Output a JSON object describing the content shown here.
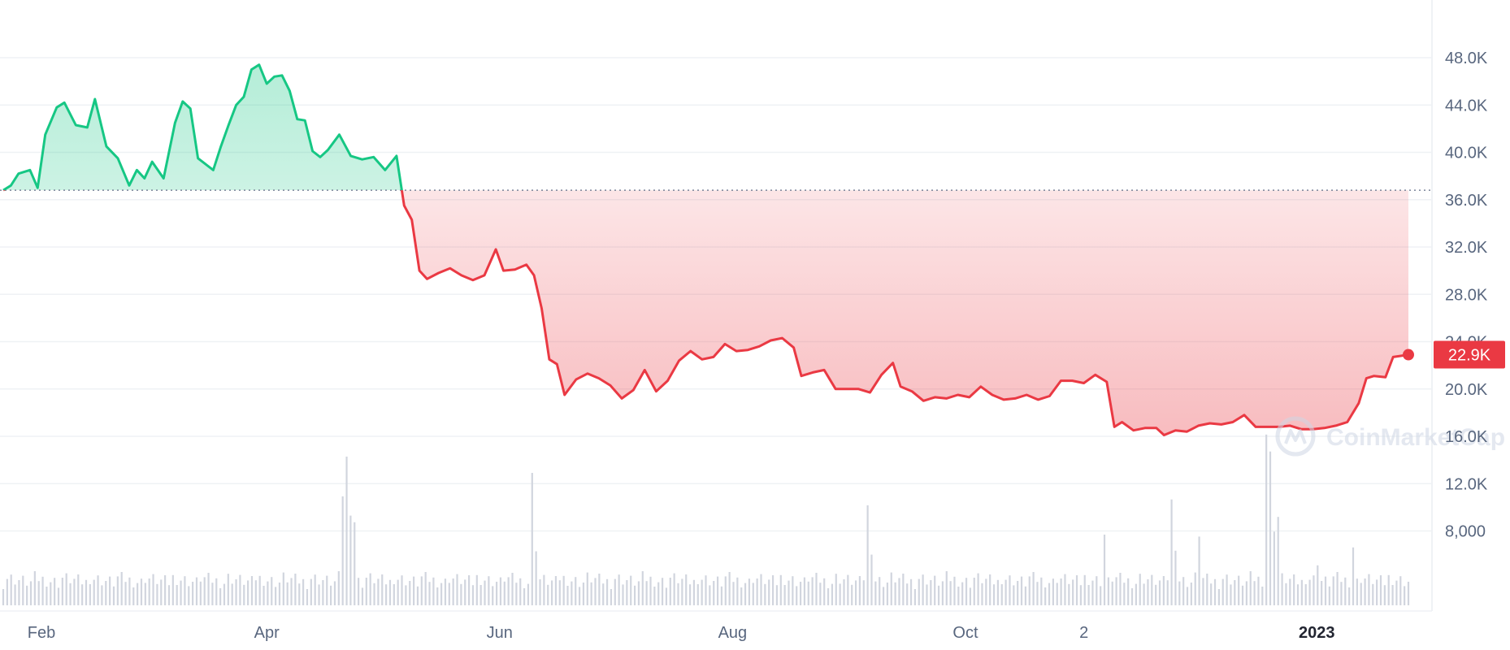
{
  "chart_data": {
    "type": "line",
    "ylim": [
      6000,
      52000
    ],
    "y_ticks": [
      {
        "value": 48000,
        "label": "48.0K"
      },
      {
        "value": 44000,
        "label": "44.0K"
      },
      {
        "value": 40000,
        "label": "40.0K"
      },
      {
        "value": 36000,
        "label": "36.0K"
      },
      {
        "value": 32000,
        "label": "32.0K"
      },
      {
        "value": 28000,
        "label": "28.0K"
      },
      {
        "value": 24000,
        "label": "24.0K"
      },
      {
        "value": 20000,
        "label": "20.0K"
      },
      {
        "value": 16000,
        "label": "16.0K"
      },
      {
        "value": 12000,
        "label": "12.0K"
      },
      {
        "value": 8000,
        "label": "8,000"
      }
    ],
    "x_ticks": [
      {
        "date": "2022-02-01",
        "label": "Feb",
        "bold": false
      },
      {
        "date": "2022-04-01",
        "label": "Apr",
        "bold": false
      },
      {
        "date": "2022-06-01",
        "label": "Jun",
        "bold": false
      },
      {
        "date": "2022-08-01",
        "label": "Aug",
        "bold": false
      },
      {
        "date": "2022-10-01",
        "label": "Oct",
        "bold": false
      },
      {
        "date": "2022-11-01",
        "label": "2",
        "bold": false
      },
      {
        "date": "2023-01-01",
        "label": "2023",
        "bold": true
      }
    ],
    "baseline_value": 36800,
    "current_value": 22900,
    "current_label": "22.9K",
    "colors": {
      "up": "#16c784",
      "down": "#ea3943",
      "grid": "#eff2f5",
      "volume": "#d1d5de"
    },
    "watermark": "CoinMarketCap",
    "series": [
      {
        "values": [
          [
            "2022-01-22",
            36800
          ],
          [
            "2022-01-24",
            37200
          ],
          [
            "2022-01-26",
            38200
          ],
          [
            "2022-01-29",
            38500
          ],
          [
            "2022-01-31",
            37000
          ],
          [
            "2022-02-02",
            41500
          ],
          [
            "2022-02-05",
            43800
          ],
          [
            "2022-02-07",
            44200
          ],
          [
            "2022-02-10",
            42300
          ],
          [
            "2022-02-13",
            42100
          ],
          [
            "2022-02-15",
            44500
          ],
          [
            "2022-02-18",
            40500
          ],
          [
            "2022-02-21",
            39500
          ],
          [
            "2022-02-24",
            37200
          ],
          [
            "2022-02-26",
            38500
          ],
          [
            "2022-02-28",
            37800
          ],
          [
            "2022-03-02",
            39200
          ],
          [
            "2022-03-05",
            37800
          ],
          [
            "2022-03-08",
            42500
          ],
          [
            "2022-03-10",
            44300
          ],
          [
            "2022-03-12",
            43700
          ],
          [
            "2022-03-14",
            39500
          ],
          [
            "2022-03-16",
            39000
          ],
          [
            "2022-03-18",
            38500
          ],
          [
            "2022-03-20",
            40500
          ],
          [
            "2022-03-22",
            42300
          ],
          [
            "2022-03-24",
            44000
          ],
          [
            "2022-03-26",
            44700
          ],
          [
            "2022-03-28",
            47000
          ],
          [
            "2022-03-30",
            47400
          ],
          [
            "2022-04-01",
            45800
          ],
          [
            "2022-04-03",
            46400
          ],
          [
            "2022-04-05",
            46500
          ],
          [
            "2022-04-07",
            45200
          ],
          [
            "2022-04-09",
            42800
          ],
          [
            "2022-04-11",
            42700
          ],
          [
            "2022-04-13",
            40100
          ],
          [
            "2022-04-15",
            39600
          ],
          [
            "2022-04-17",
            40200
          ],
          [
            "2022-04-20",
            41500
          ],
          [
            "2022-04-23",
            39700
          ],
          [
            "2022-04-26",
            39400
          ],
          [
            "2022-04-29",
            39600
          ],
          [
            "2022-05-02",
            38500
          ],
          [
            "2022-05-05",
            39700
          ],
          [
            "2022-05-07",
            35500
          ],
          [
            "2022-05-09",
            34300
          ],
          [
            "2022-05-11",
            30000
          ],
          [
            "2022-05-13",
            29300
          ],
          [
            "2022-05-16",
            29800
          ],
          [
            "2022-05-19",
            30200
          ],
          [
            "2022-05-22",
            29600
          ],
          [
            "2022-05-25",
            29200
          ],
          [
            "2022-05-28",
            29600
          ],
          [
            "2022-05-31",
            31800
          ],
          [
            "2022-06-02",
            30000
          ],
          [
            "2022-06-05",
            30100
          ],
          [
            "2022-06-08",
            30500
          ],
          [
            "2022-06-10",
            29600
          ],
          [
            "2022-06-12",
            26800
          ],
          [
            "2022-06-14",
            22500
          ],
          [
            "2022-06-16",
            22100
          ],
          [
            "2022-06-18",
            19500
          ],
          [
            "2022-06-21",
            20800
          ],
          [
            "2022-06-24",
            21300
          ],
          [
            "2022-06-27",
            20900
          ],
          [
            "2022-06-30",
            20300
          ],
          [
            "2022-07-03",
            19200
          ],
          [
            "2022-07-06",
            19900
          ],
          [
            "2022-07-09",
            21600
          ],
          [
            "2022-07-12",
            19800
          ],
          [
            "2022-07-15",
            20700
          ],
          [
            "2022-07-18",
            22400
          ],
          [
            "2022-07-21",
            23200
          ],
          [
            "2022-07-24",
            22500
          ],
          [
            "2022-07-27",
            22700
          ],
          [
            "2022-07-30",
            23800
          ],
          [
            "2022-08-02",
            23200
          ],
          [
            "2022-08-05",
            23300
          ],
          [
            "2022-08-08",
            23600
          ],
          [
            "2022-08-11",
            24100
          ],
          [
            "2022-08-14",
            24300
          ],
          [
            "2022-08-17",
            23500
          ],
          [
            "2022-08-19",
            21100
          ],
          [
            "2022-08-22",
            21400
          ],
          [
            "2022-08-25",
            21600
          ],
          [
            "2022-08-28",
            20000
          ],
          [
            "2022-08-31",
            20000
          ],
          [
            "2022-09-03",
            20000
          ],
          [
            "2022-09-06",
            19700
          ],
          [
            "2022-09-09",
            21200
          ],
          [
            "2022-09-12",
            22200
          ],
          [
            "2022-09-14",
            20200
          ],
          [
            "2022-09-17",
            19800
          ],
          [
            "2022-09-20",
            19000
          ],
          [
            "2022-09-23",
            19300
          ],
          [
            "2022-09-26",
            19200
          ],
          [
            "2022-09-29",
            19500
          ],
          [
            "2022-10-02",
            19300
          ],
          [
            "2022-10-05",
            20200
          ],
          [
            "2022-10-08",
            19500
          ],
          [
            "2022-10-11",
            19100
          ],
          [
            "2022-10-14",
            19200
          ],
          [
            "2022-10-17",
            19500
          ],
          [
            "2022-10-20",
            19100
          ],
          [
            "2022-10-23",
            19400
          ],
          [
            "2022-10-26",
            20700
          ],
          [
            "2022-10-29",
            20700
          ],
          [
            "2022-11-01",
            20500
          ],
          [
            "2022-11-04",
            21200
          ],
          [
            "2022-11-07",
            20600
          ],
          [
            "2022-11-09",
            16800
          ],
          [
            "2022-11-11",
            17200
          ],
          [
            "2022-11-14",
            16500
          ],
          [
            "2022-11-17",
            16700
          ],
          [
            "2022-11-20",
            16700
          ],
          [
            "2022-11-22",
            16100
          ],
          [
            "2022-11-25",
            16500
          ],
          [
            "2022-11-28",
            16400
          ],
          [
            "2022-12-01",
            16900
          ],
          [
            "2022-12-04",
            17100
          ],
          [
            "2022-12-07",
            17000
          ],
          [
            "2022-12-10",
            17200
          ],
          [
            "2022-12-13",
            17800
          ],
          [
            "2022-12-16",
            16800
          ],
          [
            "2022-12-19",
            16800
          ],
          [
            "2022-12-22",
            16800
          ],
          [
            "2022-12-25",
            16900
          ],
          [
            "2022-12-28",
            16600
          ],
          [
            "2022-12-31",
            16600
          ],
          [
            "2023-01-03",
            16700
          ],
          [
            "2023-01-06",
            16900
          ],
          [
            "2023-01-09",
            17200
          ],
          [
            "2023-01-12",
            18800
          ],
          [
            "2023-01-14",
            20900
          ],
          [
            "2023-01-16",
            21100
          ],
          [
            "2023-01-19",
            21000
          ],
          [
            "2023-01-21",
            22700
          ],
          [
            "2023-01-23",
            22800
          ],
          [
            "2023-01-25",
            22900
          ]
        ]
      }
    ]
  }
}
